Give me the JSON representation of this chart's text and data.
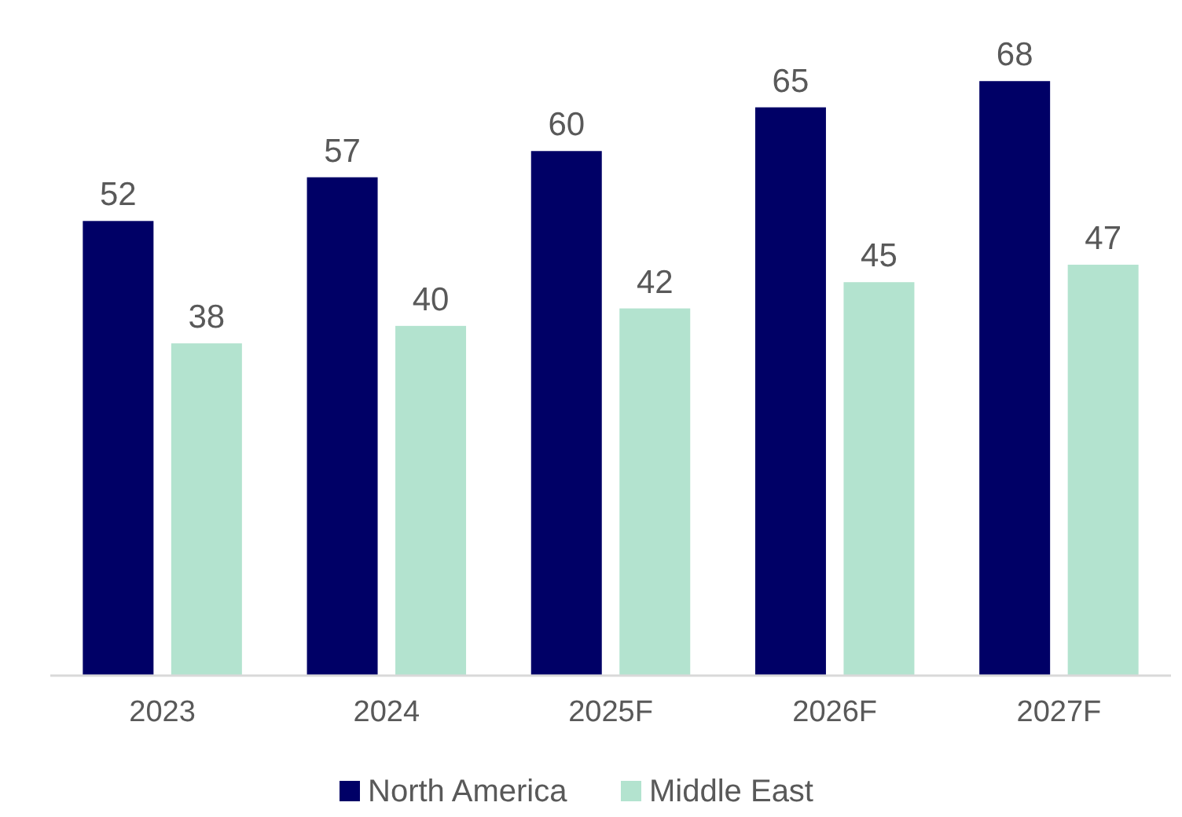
{
  "chart_data": {
    "type": "bar",
    "categories": [
      "2023",
      "2024",
      "2025F",
      "2026F",
      "2027F"
    ],
    "series": [
      {
        "name": "North America",
        "color": "#000066",
        "values": [
          52,
          57,
          60,
          65,
          68
        ]
      },
      {
        "name": "Middle East",
        "color": "#b3e3cf",
        "values": [
          38,
          40,
          42,
          45,
          47
        ]
      }
    ],
    "data_labels": true,
    "legend": "bottom"
  }
}
